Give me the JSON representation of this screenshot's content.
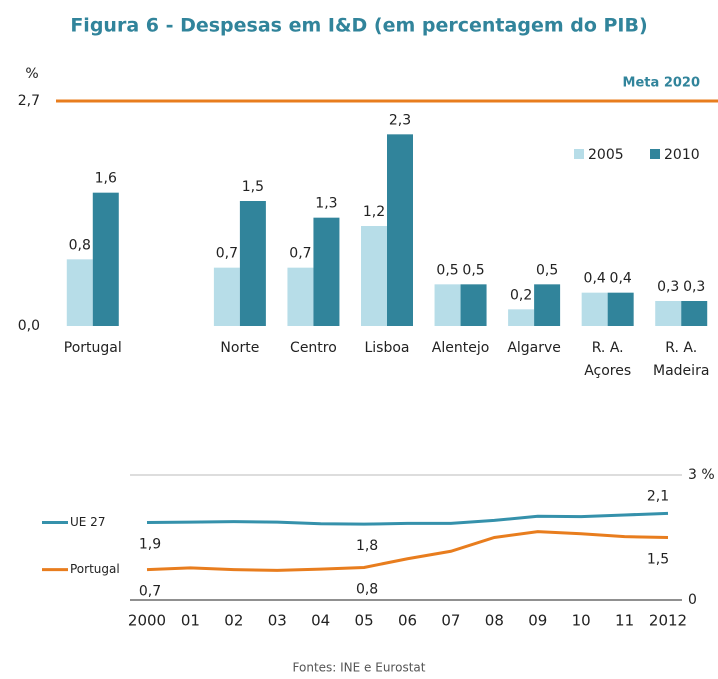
{
  "title": "Figura 6 - Despesas em I&D (em percentagem do PIB)",
  "source": "Fontes: INE e Eurostat",
  "chart_data": [
    {
      "type": "bar",
      "ylabel": "%",
      "categories": [
        "Portugal",
        null,
        "Norte",
        "Centro",
        "Lisboa",
        "Alentejo",
        "Algarve",
        "R. A. Açores",
        "R. A. Madeira"
      ],
      "series": [
        {
          "name": "2005",
          "color": "#b7dde8",
          "values": [
            0.8,
            null,
            0.7,
            0.7,
            1.2,
            0.5,
            0.2,
            0.4,
            0.3
          ],
          "value_labels": [
            "0,8",
            null,
            "0,7",
            "0,7",
            "1,2",
            "0,5",
            "0,2",
            "0,4",
            "0,3"
          ]
        },
        {
          "name": "2010",
          "color": "#31849b",
          "values": [
            1.6,
            null,
            1.5,
            1.3,
            2.3,
            0.5,
            0.5,
            0.4,
            0.3
          ],
          "value_labels": [
            "1,6",
            null,
            "1,5",
            "1,3",
            "2,3",
            "0,5",
            "0,5",
            "0,4",
            "0,3"
          ]
        }
      ],
      "ylim": [
        0,
        2.7
      ],
      "yticks": [
        {
          "value": 0,
          "label": "0,0"
        },
        {
          "value": 2.7,
          "label": "2,7"
        }
      ],
      "target": {
        "value": 2.7,
        "label": "Meta 2020",
        "color": "#e87d1e"
      },
      "legend": "upper right"
    },
    {
      "type": "line",
      "categories": [
        "2000",
        "01",
        "02",
        "03",
        "04",
        "05",
        "06",
        "07",
        "08",
        "09",
        "10",
        "11",
        "2012"
      ],
      "series": [
        {
          "name": "UE 27",
          "color": "#3591ab",
          "values": [
            1.86,
            1.87,
            1.88,
            1.87,
            1.83,
            1.82,
            1.84,
            1.84,
            1.91,
            2.01,
            2.0,
            2.04,
            2.08
          ],
          "value_labels": [
            "1,9",
            null,
            null,
            null,
            null,
            "1,8",
            null,
            null,
            null,
            null,
            null,
            null,
            "2,1"
          ]
        },
        {
          "name": "Portugal",
          "color": "#e87d1e",
          "values": [
            0.73,
            0.77,
            0.73,
            0.71,
            0.74,
            0.78,
            0.99,
            1.17,
            1.5,
            1.64,
            1.59,
            1.52,
            1.5
          ],
          "value_labels": [
            "0,7",
            null,
            null,
            null,
            null,
            "0,8",
            null,
            null,
            null,
            null,
            null,
            null,
            "1,5"
          ]
        }
      ],
      "ylim": [
        0,
        3
      ],
      "yticks": [
        0,
        {
          "value": 3,
          "label": "3 %"
        }
      ],
      "legend": "left"
    }
  ]
}
